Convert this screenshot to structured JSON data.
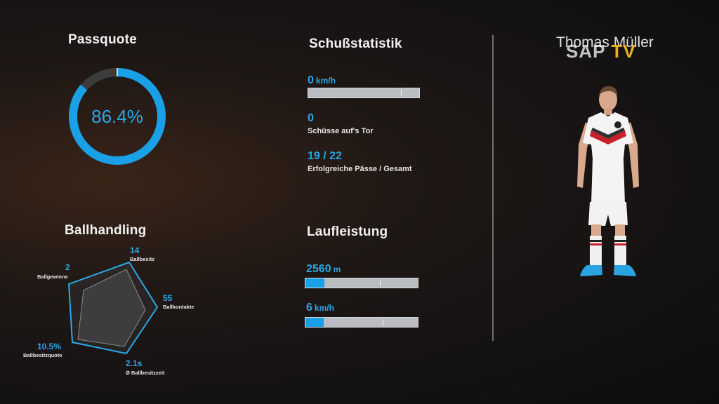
{
  "passquote": {
    "title": "Passquote",
    "value_text": "86.4%",
    "value": 0.864
  },
  "schuss": {
    "title": "Schußstatistik",
    "speed_value": "0",
    "speed_unit": "km/h",
    "speed_fill": 0.0,
    "shots_value": "0",
    "shots_label": "Schüsse auf's Tor",
    "passes_value": "19 / 22",
    "passes_label": "Erfolgreiche Pässe / Gesamt"
  },
  "lauf": {
    "title": "Laufleistung",
    "distance_value": "2560",
    "distance_unit": "m",
    "distance_fill": 0.17,
    "speed_value": "6",
    "speed_unit": "km/h",
    "speed_fill": 0.16
  },
  "ballhandling": {
    "title": "Ballhandling",
    "items": [
      {
        "value": "14",
        "label": "Ballbesitz"
      },
      {
        "value": "55",
        "label": "Ballkontakte"
      },
      {
        "value": "2.1s",
        "label": "Ø Ballbesitzzeit"
      },
      {
        "value": "10.5%",
        "label": "Ballbesitzquote"
      },
      {
        "value": "2",
        "label": "Ballgewinne"
      }
    ]
  },
  "player": {
    "name": "Thomas Müller"
  },
  "logo": {
    "sap": "SAP",
    "tv": "TV"
  },
  "colors": {
    "accent": "#1aa0e6",
    "bar": "#b9bcc0",
    "ring_rest": "#3c3c3c"
  }
}
